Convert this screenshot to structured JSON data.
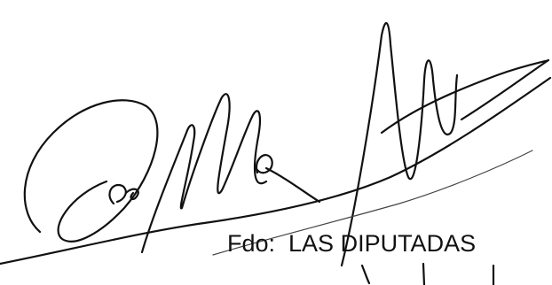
{
  "document": {
    "signature_caption": "Fdo:  LAS DIPUTADAS",
    "signature_description": "handwritten signatures"
  }
}
